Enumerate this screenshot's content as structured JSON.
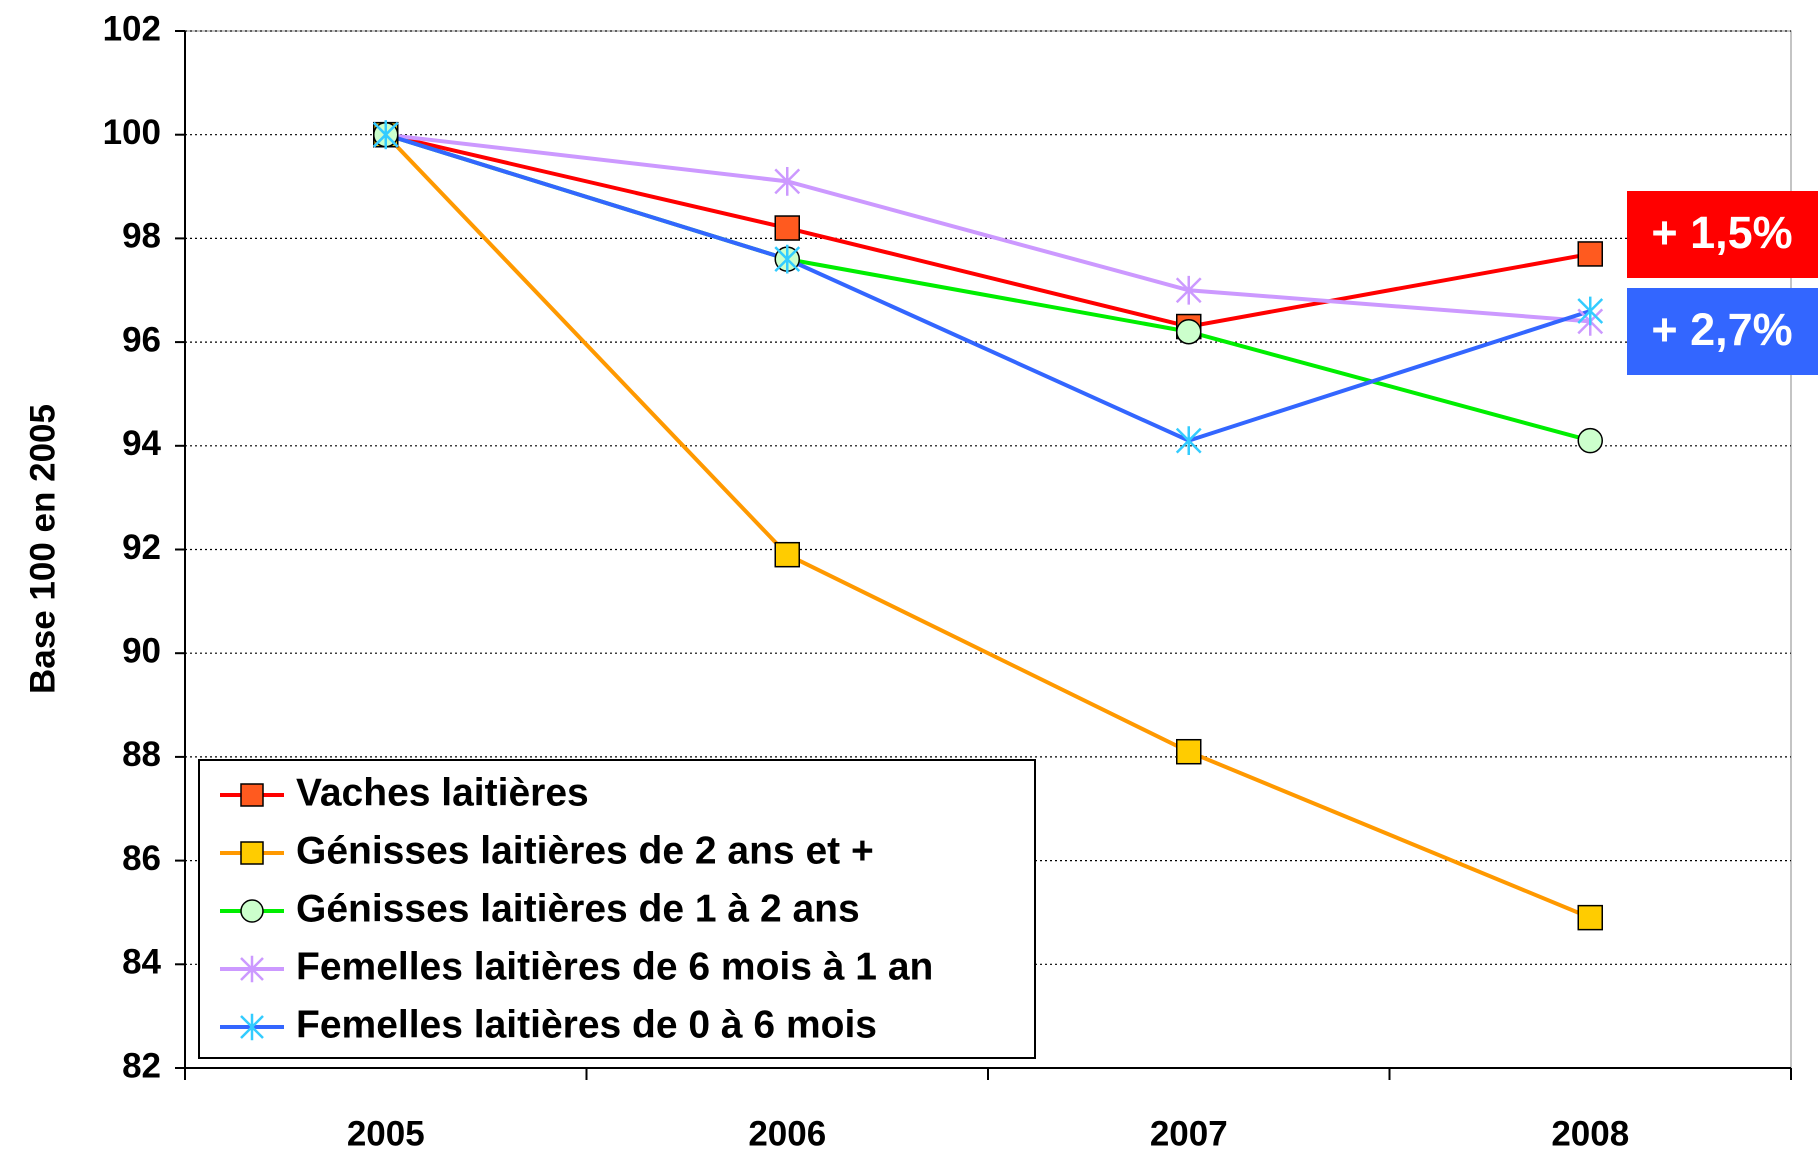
{
  "chart_data": {
    "type": "line",
    "y_label": "Base 100 en 2005",
    "categories": [
      "2005",
      "2006",
      "2007",
      "2008"
    ],
    "series": [
      {
        "name": "Vaches laitières",
        "color": "#ff0000",
        "marker": "square",
        "marker_color": "#ff5a1f",
        "values": [
          100,
          98.2,
          96.3,
          97.7
        ]
      },
      {
        "name": "Génisses laitières de 2 ans et +",
        "color": "#ff9900",
        "marker": "square",
        "marker_color": "#ffcc00",
        "values": [
          100,
          91.9,
          88.1,
          84.9
        ]
      },
      {
        "name": "Génisses laitières de 1 à 2 ans",
        "color": "#00ee00",
        "marker": "circle",
        "marker_color": "#ccffcc",
        "values": [
          100,
          97.6,
          96.2,
          94.1
        ]
      },
      {
        "name": "Femelles laitières de 6 mois à 1 an",
        "color": "#cc99ff",
        "marker": "star",
        "marker_color": "#cc99ff",
        "values": [
          100,
          99.1,
          97.0,
          96.4
        ]
      },
      {
        "name": "Femelles laitières de 0 à 6 mois",
        "color": "#3366ff",
        "marker": "star",
        "marker_color": "#33ccff",
        "values": [
          100,
          97.6,
          94.1,
          96.6
        ]
      }
    ],
    "ylim": [
      82,
      102
    ],
    "yticks": [
      82,
      84,
      86,
      88,
      90,
      92,
      94,
      96,
      98,
      100,
      102
    ],
    "grid": true,
    "annotations": [
      {
        "text": "+ 1,5%",
        "color": "#ff0000"
      },
      {
        "text": "+ 2,7%",
        "color": "#3366ff"
      }
    ]
  }
}
